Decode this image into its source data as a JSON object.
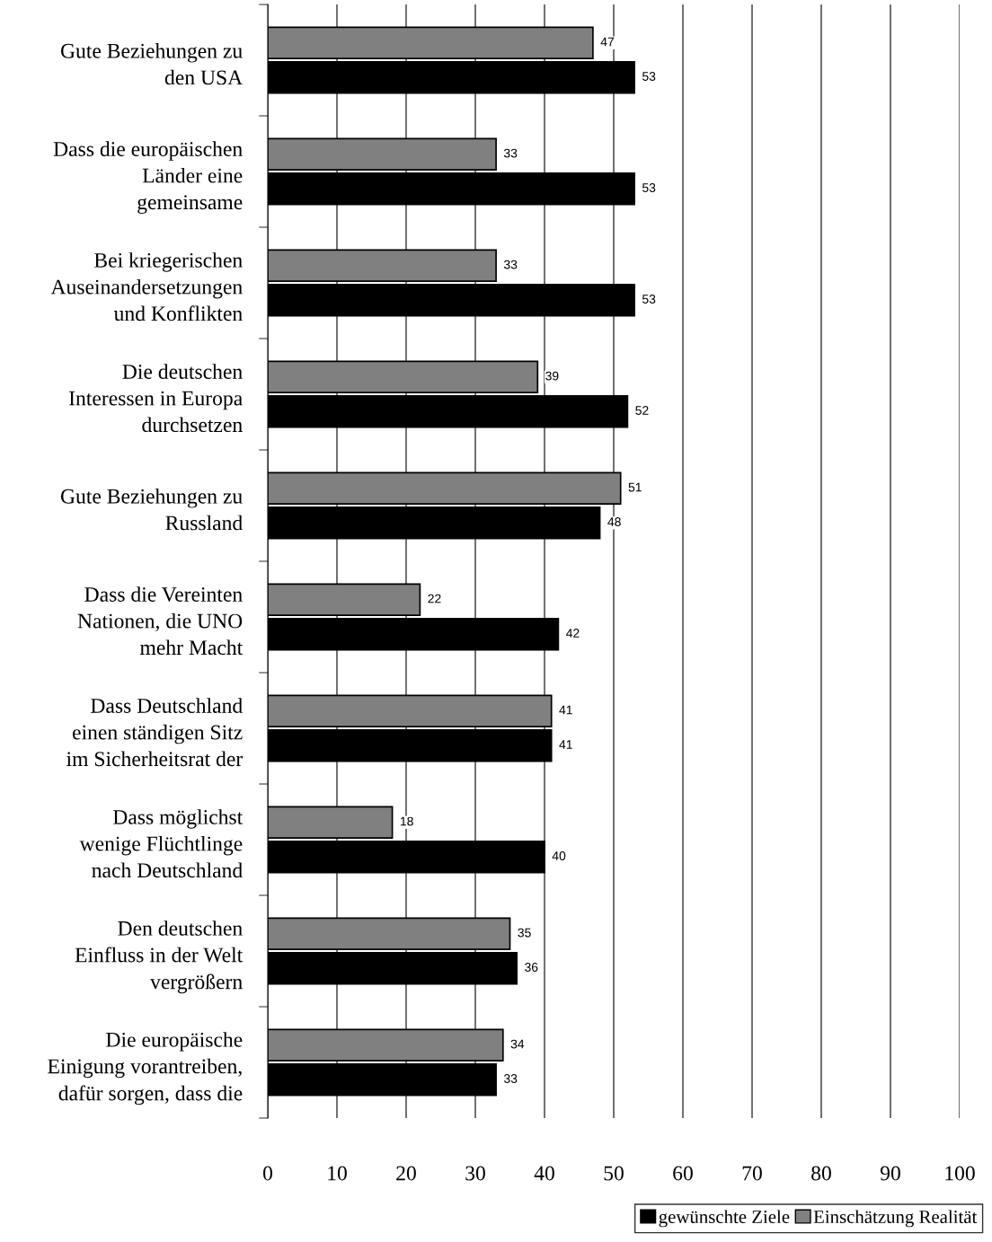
{
  "chart_data": {
    "type": "bar",
    "orientation": "horizontal",
    "categories": [
      "Gute Beziehungen zu\nden USA",
      "Dass die europäischen\nLänder eine\ngemeinsame",
      "Bei kriegerischen\nAuseinandersetzungen\nund Konflikten",
      "Die deutschen\nInteressen in Europa\ndurchsetzen",
      "Gute Beziehungen zu\nRussland",
      "Dass die Vereinten\nNationen, die UNO\nmehr Macht",
      "Dass Deutschland\neinen ständigen Sitz\nim Sicherheitsrat der",
      "Dass möglichst\nwenige Flüchtlinge\nnach Deutschland",
      "Den deutschen\nEinfluss in der Welt\nvergrößern",
      "Die europäische\nEinigung vorantreiben,\ndafür sorgen, dass die"
    ],
    "series": [
      {
        "name": "Einschätzung Realität",
        "color": "#808080",
        "values": [
          47,
          33,
          33,
          39,
          51,
          22,
          41,
          18,
          35,
          34
        ]
      },
      {
        "name": "gewünschte Ziele",
        "color": "#000000",
        "values": [
          53,
          53,
          53,
          52,
          48,
          42,
          41,
          40,
          36,
          33
        ]
      }
    ],
    "xlim": [
      0,
      100
    ],
    "xticks": [
      0,
      10,
      20,
      30,
      40,
      50,
      60,
      70,
      80,
      90,
      100
    ],
    "grid": "x",
    "legend": "bottom",
    "data_labels": true
  }
}
